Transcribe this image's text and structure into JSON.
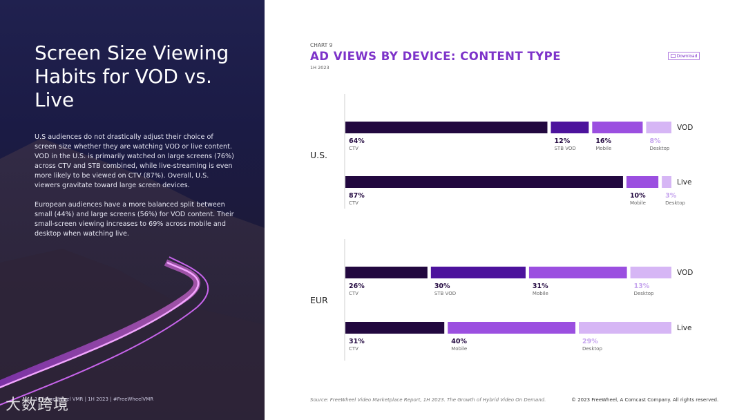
{
  "left_panel": {
    "title": "Screen Size Viewing Habits for VOD vs. Live",
    "paragraph_1": "U.S audiences do not drastically adjust their choice of screen size whether they are watching VOD or live content. VOD in the U.S. is primarily watched on large screens (76%) across CTV and STB combined, while live-streaming is even more likely to be viewed on CTV (87%). Overall, U.S. viewers gravitate toward large screen devices.",
    "paragraph_2": "European audiences have a more balanced split between small (44%) and large screens (56%) for VOD content. Their small-screen viewing increases to 69% across mobile and desktop when watching live.",
    "footer": "14 | FreeWheel VMR | 1H 2023 | #FreeWheelVMR",
    "watermark": "大数跨境"
  },
  "header": {
    "chart_label": "CHART 9",
    "title": "AD VIEWS BY DEVICE: CONTENT TYPE",
    "subtitle": "1H 2023",
    "download_label": "Download"
  },
  "footer": {
    "source": "Source: FreeWheel Video Marketplace Report, 1H 2023. The Growth of Hybrid Video On Demand.",
    "copyright": "© 2023 FreeWheel, A Comcast Company. All rights reserved."
  },
  "colors": {
    "CTV": "#22083f",
    "STB VOD": "#4c129c",
    "Mobile": "#9b4fe0",
    "Desktop": "#d6b6f5",
    "label_dark": "#22083f",
    "label_light": "#c6a5ee"
  },
  "chart_data": {
    "type": "bar",
    "stacked": true,
    "orientation": "horizontal",
    "title": "AD VIEWS BY DEVICE: CONTENT TYPE",
    "unit": "%",
    "xlim": [
      0,
      100
    ],
    "regions": [
      {
        "name": "U.S.",
        "rows": [
          {
            "content_type": "VOD",
            "segments": [
              {
                "device": "CTV",
                "value": 64,
                "label": "64%"
              },
              {
                "device": "STB VOD",
                "value": 12,
                "label": "12%"
              },
              {
                "device": "Mobile",
                "value": 16,
                "label": "16%"
              },
              {
                "device": "Desktop",
                "value": 8,
                "label": "8%"
              }
            ]
          },
          {
            "content_type": "Live",
            "segments": [
              {
                "device": "CTV",
                "value": 87,
                "label": "87%"
              },
              {
                "device": "Mobile",
                "value": 10,
                "label": "10%"
              },
              {
                "device": "Desktop",
                "value": 3,
                "label": "3%"
              }
            ]
          }
        ]
      },
      {
        "name": "EUR",
        "rows": [
          {
            "content_type": "VOD",
            "segments": [
              {
                "device": "CTV",
                "value": 26,
                "label": "26%"
              },
              {
                "device": "STB VOD",
                "value": 30,
                "label": "30%"
              },
              {
                "device": "Mobile",
                "value": 31,
                "label": "31%"
              },
              {
                "device": "Desktop",
                "value": 13,
                "label": "13%"
              }
            ]
          },
          {
            "content_type": "Live",
            "segments": [
              {
                "device": "CTV",
                "value": 31,
                "label": "31%"
              },
              {
                "device": "Mobile",
                "value": 40,
                "label": "40%"
              },
              {
                "device": "Desktop",
                "value": 29,
                "label": "29%"
              }
            ]
          }
        ]
      }
    ]
  }
}
